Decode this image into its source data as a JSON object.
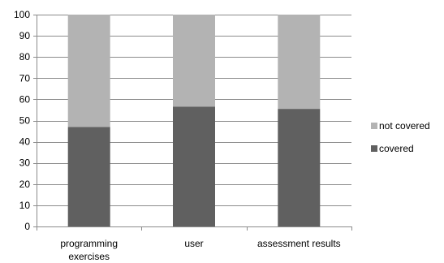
{
  "chart_data": {
    "type": "bar",
    "stacked": true,
    "categories": [
      [
        "programming",
        "exercises"
      ],
      [
        "user"
      ],
      [
        "assessment results"
      ]
    ],
    "series": [
      {
        "name": "covered",
        "values": [
          47,
          56.5,
          55.5
        ],
        "color": "#606060"
      },
      {
        "name": "not covered",
        "values": [
          53,
          43.5,
          44.5
        ],
        "color": "#b3b3b3"
      }
    ],
    "ylim": [
      0,
      100
    ],
    "yticks": [
      0,
      10,
      20,
      30,
      40,
      50,
      60,
      70,
      80,
      90,
      100
    ],
    "grid": true,
    "legend": "right",
    "legend_order": [
      "not covered",
      "covered"
    ]
  }
}
